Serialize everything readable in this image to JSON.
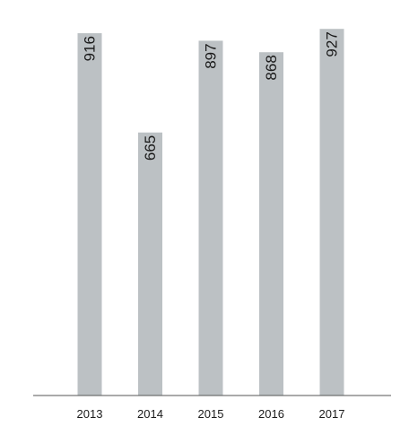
{
  "chart_data": {
    "type": "bar",
    "categories": [
      "2013",
      "2014",
      "2015",
      "2016",
      "2017"
    ],
    "values": [
      916,
      665,
      897,
      868,
      927
    ],
    "data_labels": [
      "916",
      "665",
      "897",
      "868",
      "927"
    ],
    "title": "",
    "xlabel": "",
    "ylabel": "",
    "ylim": [
      0,
      1000
    ],
    "grid": false,
    "legend": "none",
    "colors": {
      "bar": "#bcc1c4",
      "axis": "#555555",
      "text": "#1a1a1a"
    }
  }
}
